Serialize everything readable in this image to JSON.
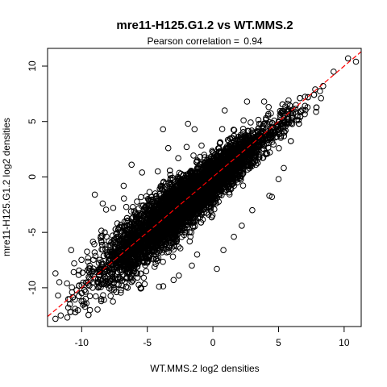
{
  "chart_data": {
    "type": "scatter",
    "title": "mre11-H125.G1.2 vs WT.MMS.2",
    "subtitle_prefix": "Pearson correlation = ",
    "pearson_correlation": "0.94",
    "xlabel": "WT.MMS.2 log2 densities",
    "ylabel": "mre11-H125.G1.2 log2 densities",
    "xlim": [
      -12.6,
      11.3
    ],
    "ylim": [
      -13.5,
      11.6
    ],
    "x_ticks": [
      -10,
      -5,
      0,
      5,
      10
    ],
    "y_ticks": [
      -10,
      -5,
      0,
      5,
      10
    ],
    "x_tick_labels": [
      "-10",
      "-5",
      "0",
      "5",
      "10"
    ],
    "y_tick_labels": [
      "-10",
      "-5",
      "0",
      "5",
      "10"
    ],
    "point_count_estimate": 6000,
    "cloud": {
      "slope": 0.97,
      "intercept": -0.25,
      "x_mean": -2.0,
      "x_sd": 3.1,
      "residual_sd": 1.0
    },
    "outliers": [
      {
        "x": 10.9,
        "y": 10.4
      },
      {
        "x": 10.3,
        "y": 10.7
      },
      {
        "x": 9.2,
        "y": 9.5
      },
      {
        "x": 8.4,
        "y": 8.2
      },
      {
        "x": 7.8,
        "y": 7.9
      },
      {
        "x": 3.9,
        "y": 6.8
      },
      {
        "x": -12.0,
        "y": -8.7
      },
      {
        "x": -11.8,
        "y": -10.7
      },
      {
        "x": -12.0,
        "y": -12.8
      },
      {
        "x": -11.6,
        "y": -12.5
      },
      {
        "x": -11.7,
        "y": -9.5
      },
      {
        "x": -10.9,
        "y": -11.5
      },
      {
        "x": -10.5,
        "y": -11.9
      },
      {
        "x": -10.2,
        "y": -9.8
      },
      {
        "x": -8.3,
        "y": -11.1
      },
      {
        "x": -9.1,
        "y": -9.5
      },
      {
        "x": -8.4,
        "y": -2.4
      },
      {
        "x": -7.6,
        "y": -2.8
      },
      {
        "x": -6.2,
        "y": 1.1
      },
      {
        "x": -5.4,
        "y": 0.4
      },
      {
        "x": -3.4,
        "y": 2.6
      },
      {
        "x": -3.8,
        "y": 4.3
      },
      {
        "x": -1.4,
        "y": 4.3
      },
      {
        "x": -1.9,
        "y": 4.8
      },
      {
        "x": -6.5,
        "y": -10.0
      },
      {
        "x": -4.1,
        "y": -9.9
      },
      {
        "x": -2.6,
        "y": -8.9
      },
      {
        "x": -1.6,
        "y": -8.0
      },
      {
        "x": 0.3,
        "y": -8.3
      },
      {
        "x": 0.8,
        "y": -6.6
      },
      {
        "x": 1.6,
        "y": -5.4
      },
      {
        "x": 2.2,
        "y": -4.4
      },
      {
        "x": 4.3,
        "y": -1.7
      },
      {
        "x": 5.4,
        "y": 0.8
      },
      {
        "x": 5.0,
        "y": -0.2
      },
      {
        "x": 4.5,
        "y": -1.8
      },
      {
        "x": 3.0,
        "y": -3.0
      },
      {
        "x": -9.0,
        "y": -1.6
      },
      {
        "x": -10.8,
        "y": -6.6
      },
      {
        "x": -6.8,
        "y": -0.8
      },
      {
        "x": -4.2,
        "y": 0.5
      },
      {
        "x": -2.0,
        "y": 2.7
      },
      {
        "x": 0.9,
        "y": 6.0
      },
      {
        "x": 2.6,
        "y": 6.8
      },
      {
        "x": -7.0,
        "y": -10.2
      },
      {
        "x": -5.5,
        "y": -10.0
      },
      {
        "x": -3.0,
        "y": -9.3
      },
      {
        "x": -1.2,
        "y": -7.0
      }
    ],
    "fit_line": {
      "slope": 1.0,
      "intercept": 0.0,
      "color": "#ff0000",
      "style": "dashed"
    },
    "grid": false,
    "legend": "none",
    "marker": "open-circle",
    "marker_color": "#000000"
  }
}
